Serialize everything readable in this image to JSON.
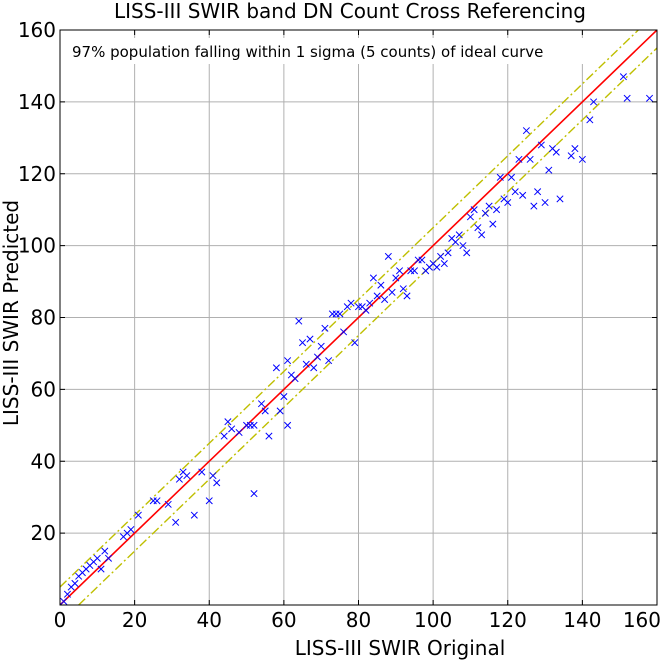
{
  "chart_data": {
    "type": "scatter",
    "title": "LISS-III SWIR band DN Count Cross Referencing",
    "xlabel": "LISS-III SWIR Original",
    "ylabel": "LISS-III SWIR Predicted",
    "annotation": "97% population falling within 1 sigma (5 counts) of ideal curve",
    "xlim": [
      0,
      160
    ],
    "ylim": [
      0,
      160
    ],
    "x_ticks": [
      0,
      20,
      40,
      60,
      80,
      100,
      120,
      140,
      160
    ],
    "y_ticks": [
      20,
      40,
      60,
      80,
      100,
      120,
      140,
      160
    ],
    "x_tick_labels": [
      "0",
      "20",
      "40",
      "60",
      "80",
      "100",
      "120",
      "140",
      "160"
    ],
    "y_tick_labels": [
      "20",
      "40",
      "60",
      "80",
      "100",
      "120",
      "140",
      "160"
    ],
    "grid": true,
    "series": [
      {
        "kind": "scatter",
        "marker": "x",
        "color": "#0000ff",
        "points": [
          [
            1,
            1
          ],
          [
            2,
            3
          ],
          [
            3,
            5
          ],
          [
            4,
            6
          ],
          [
            5,
            8
          ],
          [
            6,
            9
          ],
          [
            7,
            10
          ],
          [
            8,
            11
          ],
          [
            9,
            12
          ],
          [
            10,
            13
          ],
          [
            11,
            10
          ],
          [
            12,
            15
          ],
          [
            13,
            13
          ],
          [
            17,
            19
          ],
          [
            18,
            20
          ],
          [
            19,
            21
          ],
          [
            21,
            25
          ],
          [
            25,
            29
          ],
          [
            26,
            29
          ],
          [
            29,
            28
          ],
          [
            31,
            23
          ],
          [
            32,
            35
          ],
          [
            33,
            37
          ],
          [
            34,
            36
          ],
          [
            36,
            25
          ],
          [
            38,
            37
          ],
          [
            40,
            29
          ],
          [
            41,
            36
          ],
          [
            42,
            34
          ],
          [
            44,
            47
          ],
          [
            45,
            51
          ],
          [
            46,
            49
          ],
          [
            48,
            48
          ],
          [
            50,
            50
          ],
          [
            51,
            50
          ],
          [
            52,
            50
          ],
          [
            52,
            31
          ],
          [
            54,
            56
          ],
          [
            55,
            54
          ],
          [
            56,
            47
          ],
          [
            58,
            66
          ],
          [
            59,
            54
          ],
          [
            60,
            58
          ],
          [
            61,
            68
          ],
          [
            61,
            50
          ],
          [
            62,
            64
          ],
          [
            63,
            63
          ],
          [
            64,
            79
          ],
          [
            65,
            73
          ],
          [
            66,
            67
          ],
          [
            67,
            74
          ],
          [
            68,
            66
          ],
          [
            69,
            69
          ],
          [
            70,
            72
          ],
          [
            71,
            77
          ],
          [
            72,
            68
          ],
          [
            73,
            81
          ],
          [
            74,
            81
          ],
          [
            75,
            81
          ],
          [
            76,
            76
          ],
          [
            77,
            83
          ],
          [
            78,
            84
          ],
          [
            79,
            73
          ],
          [
            80,
            83
          ],
          [
            81,
            83
          ],
          [
            82,
            82
          ],
          [
            83,
            84
          ],
          [
            84,
            91
          ],
          [
            85,
            86
          ],
          [
            86,
            89
          ],
          [
            87,
            85
          ],
          [
            88,
            97
          ],
          [
            89,
            87
          ],
          [
            90,
            91
          ],
          [
            91,
            93
          ],
          [
            92,
            88
          ],
          [
            93,
            86
          ],
          [
            94,
            93
          ],
          [
            95,
            93
          ],
          [
            96,
            96
          ],
          [
            97,
            96
          ],
          [
            98,
            93
          ],
          [
            99,
            94
          ],
          [
            100,
            95
          ],
          [
            101,
            94
          ],
          [
            102,
            97
          ],
          [
            103,
            95
          ],
          [
            104,
            98
          ],
          [
            105,
            102
          ],
          [
            106,
            101
          ],
          [
            107,
            103
          ],
          [
            108,
            100
          ],
          [
            109,
            98
          ],
          [
            110,
            108
          ],
          [
            111,
            110
          ],
          [
            112,
            105
          ],
          [
            113,
            103
          ],
          [
            114,
            109
          ],
          [
            115,
            111
          ],
          [
            116,
            106
          ],
          [
            117,
            110
          ],
          [
            118,
            119
          ],
          [
            119,
            113
          ],
          [
            120,
            112
          ],
          [
            121,
            119
          ],
          [
            122,
            115
          ],
          [
            123,
            124
          ],
          [
            124,
            114
          ],
          [
            125,
            132
          ],
          [
            126,
            124
          ],
          [
            127,
            111
          ],
          [
            128,
            115
          ],
          [
            129,
            128
          ],
          [
            130,
            112
          ],
          [
            131,
            121
          ],
          [
            132,
            127
          ],
          [
            133,
            126
          ],
          [
            134,
            113
          ],
          [
            137,
            125
          ],
          [
            138,
            127
          ],
          [
            140,
            124
          ],
          [
            142,
            135
          ],
          [
            143,
            140
          ],
          [
            151,
            147
          ],
          [
            152,
            141
          ],
          [
            158,
            141
          ]
        ]
      },
      {
        "kind": "line",
        "name": "ideal curve",
        "color": "#ff0000",
        "dash": "solid",
        "points": [
          [
            0,
            0
          ],
          [
            160,
            160
          ]
        ]
      },
      {
        "kind": "line",
        "name": "+1 sigma",
        "color": "#bfbf00",
        "dash": "dashdot",
        "points": [
          [
            0,
            5
          ],
          [
            155,
            160
          ]
        ]
      },
      {
        "kind": "line",
        "name": "-1 sigma",
        "color": "#bfbf00",
        "dash": "dashdot",
        "points": [
          [
            5,
            0
          ],
          [
            160,
            155
          ]
        ]
      }
    ]
  }
}
